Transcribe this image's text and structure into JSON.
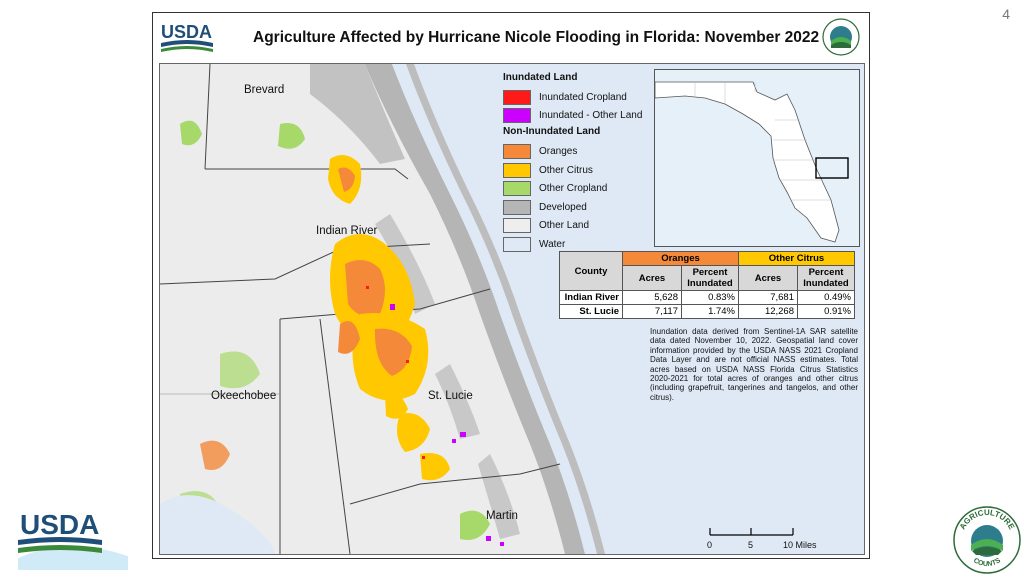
{
  "page_number": "4",
  "map_title": "Agriculture Affected by Hurricane Nicole Flooding in Florida: November 2022",
  "logos": {
    "usda": "USDA",
    "seal_top_text": "AGRICULTURE",
    "seal_bottom_text": "COUNTS"
  },
  "counties": [
    "Brevard",
    "Indian River",
    "Okeechobee",
    "St. Lucie",
    "Martin"
  ],
  "legend": {
    "inundated_heading": "Inundated Land",
    "non_inundated_heading": "Non-Inundated Land",
    "inundated_items": [
      {
        "label": "Inundated Cropland",
        "color": "#ff1a1a"
      },
      {
        "label": "Inundated - Other Land",
        "color": "#cc00ff"
      }
    ],
    "non_inundated_items": [
      {
        "label": "Oranges",
        "color": "#f4893a"
      },
      {
        "label": "Other Citrus",
        "color": "#ffc800"
      },
      {
        "label": "Other Cropland",
        "color": "#a6d96a"
      },
      {
        "label": "Developed",
        "color": "#b5b5b5"
      },
      {
        "label": "Other Land",
        "color": "#eeeeee"
      },
      {
        "label": "Water",
        "color": "#dfe9f5"
      }
    ]
  },
  "table": {
    "county_header": "County",
    "group_headers": [
      "Oranges",
      "Other Citrus"
    ],
    "sub_headers": [
      "Acres",
      "Percent Inundated",
      "Acres",
      "Percent Inundated"
    ],
    "rows": [
      {
        "county": "Indian River",
        "oranges_acres": "5,628",
        "oranges_pct": "0.83%",
        "citrus_acres": "7,681",
        "citrus_pct": "0.49%"
      },
      {
        "county": "St. Lucie",
        "oranges_acres": "7,117",
        "oranges_pct": "1.74%",
        "citrus_acres": "12,268",
        "citrus_pct": "0.91%"
      }
    ]
  },
  "note": "Inundation data derived from Sentinel-1A SAR satellite data dated November 10, 2022. Geospatial land cover information provided by the USDA NASS 2021 Cropland Data Layer and are not official NASS estimates. Total acres based on USDA NASS Florida Citrus Statistics 2020-2021 for total acres of oranges and other citrus (including grapefruit, tangerines and tangelos, and other citrus).",
  "scale_bar": {
    "labels": [
      "0",
      "5",
      "10 Miles"
    ]
  }
}
